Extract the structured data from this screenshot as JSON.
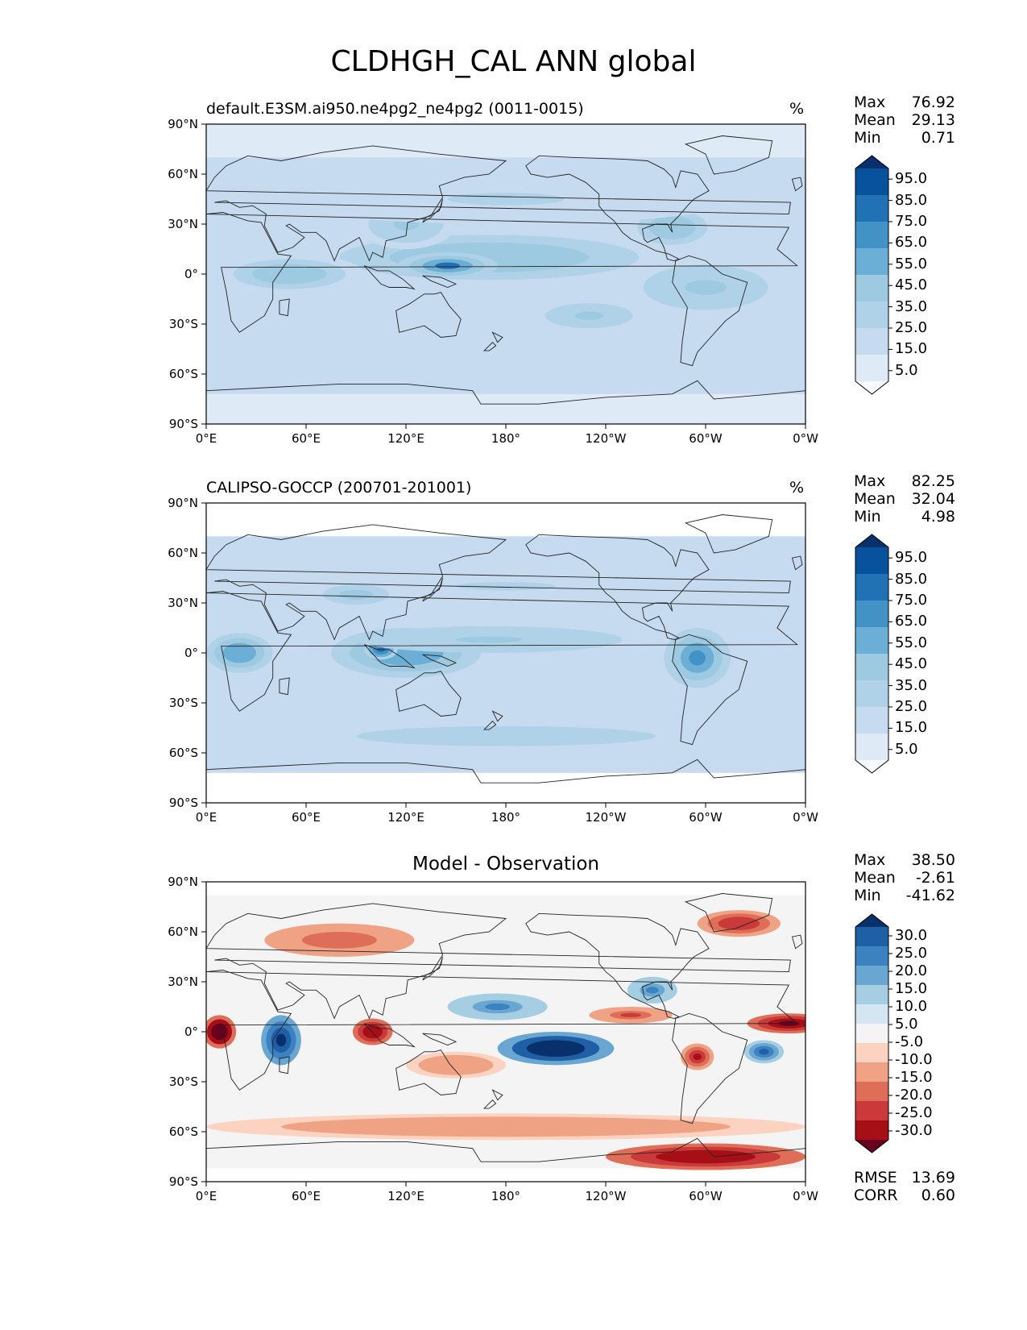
{
  "figure": {
    "title": "CLDHGH_CAL ANN global"
  },
  "colormaps": {
    "blues": [
      "#f7fbff",
      "#deebf7",
      "#c6dbef",
      "#b0d2e8",
      "#9ecae1",
      "#6baed6",
      "#4292c6",
      "#2171b5",
      "#08519c",
      "#08306b"
    ],
    "diff": [
      "#67001f",
      "#a50f15",
      "#cb3a3a",
      "#de6e57",
      "#f0a285",
      "#fbd3c0",
      "#f4f4f4",
      "#d4e6f1",
      "#a6cee3",
      "#6aa6d2",
      "#3d82c0",
      "#1f5fa6",
      "#08306b"
    ]
  },
  "chart_data": [
    {
      "type": "heatmap",
      "title": "default.E3SM.ai950.ne4pg2_ne4pg2 (0011-0015)",
      "units": "%",
      "stats": [
        {
          "label": "Max",
          "value": "76.92"
        },
        {
          "label": "Mean",
          "value": "29.13"
        },
        {
          "label": "Min",
          "value": "0.71"
        }
      ],
      "colorbar_levels": [
        "95.0",
        "85.0",
        "75.0",
        "65.0",
        "55.0",
        "45.0",
        "35.0",
        "25.0",
        "15.0",
        "5.0"
      ],
      "colormap": "blues",
      "xticks": [
        "0°E",
        "60°E",
        "120°E",
        "180°",
        "120°W",
        "60°W",
        "0°W"
      ],
      "yticks": [
        "90°N",
        "60°N",
        "30°N",
        "0°",
        "30°S",
        "60°S",
        "90°S"
      ],
      "xlim": [
        0,
        360
      ],
      "ylim": [
        -90,
        90
      ],
      "field_regions": [
        {
          "lon": 170,
          "lat": 10,
          "rlon": 120,
          "rlat": 18,
          "value": 48
        },
        {
          "lon": 145,
          "lat": 5,
          "rlon": 30,
          "rlat": 8,
          "value": 72
        },
        {
          "lon": 50,
          "lat": 0,
          "rlon": 45,
          "rlat": 12,
          "value": 48
        },
        {
          "lon": 300,
          "lat": -8,
          "rlon": 50,
          "rlat": 18,
          "value": 45
        },
        {
          "lon": 230,
          "lat": -25,
          "rlon": 35,
          "rlat": 10,
          "value": 40
        },
        {
          "lon": 280,
          "lat": 28,
          "rlon": 28,
          "rlat": 14,
          "value": 48
        },
        {
          "lon": 120,
          "lat": 30,
          "rlon": 30,
          "rlat": 15,
          "value": 40
        },
        {
          "lon": 180,
          "lat": 45,
          "rlon": 140,
          "rlat": 15,
          "value": 30
        },
        {
          "lon": 180,
          "lat": -45,
          "rlon": 180,
          "rlat": 12,
          "value": 25
        }
      ]
    },
    {
      "type": "heatmap",
      "title": "CALIPSO-GOCCP (200701-201001)",
      "units": "%",
      "stats": [
        {
          "label": "Max",
          "value": "82.25"
        },
        {
          "label": "Mean",
          "value": "32.04"
        },
        {
          "label": "Min",
          "value": "4.98"
        }
      ],
      "colorbar_levels": [
        "95.0",
        "85.0",
        "75.0",
        "65.0",
        "55.0",
        "45.0",
        "35.0",
        "25.0",
        "15.0",
        "5.0"
      ],
      "colormap": "blues",
      "xticks": [
        "0°E",
        "60°E",
        "120°E",
        "180°",
        "120°W",
        "60°W",
        "0°W"
      ],
      "yticks": [
        "90°N",
        "60°N",
        "30°N",
        "0°",
        "30°S",
        "60°S",
        "90°S"
      ],
      "xlim": [
        0,
        360
      ],
      "ylim": [
        -90,
        90
      ],
      "field_regions": [
        {
          "lon": 120,
          "lat": 0,
          "rlon": 45,
          "rlat": 15,
          "value": 58
        },
        {
          "lon": 105,
          "lat": 2,
          "rlon": 10,
          "rlat": 6,
          "value": 75
        },
        {
          "lon": 20,
          "lat": 0,
          "rlon": 20,
          "rlat": 12,
          "value": 58
        },
        {
          "lon": 295,
          "lat": -3,
          "rlon": 20,
          "rlat": 18,
          "value": 60
        },
        {
          "lon": 170,
          "lat": 8,
          "rlon": 80,
          "rlat": 8,
          "value": 42
        },
        {
          "lon": 180,
          "lat": 40,
          "rlon": 120,
          "rlat": 10,
          "value": 30
        },
        {
          "lon": 90,
          "lat": 35,
          "rlon": 20,
          "rlat": 6,
          "value": 45
        },
        {
          "lon": 180,
          "lat": -50,
          "rlon": 180,
          "rlat": 12,
          "value": 32
        }
      ]
    },
    {
      "type": "heatmap",
      "title": "Model - Observation",
      "units": "",
      "stats": [
        {
          "label": "Max",
          "value": "38.50"
        },
        {
          "label": "Mean",
          "value": "-2.61"
        },
        {
          "label": "Min",
          "value": "-41.62"
        }
      ],
      "extra_stats": [
        {
          "label": "RMSE",
          "value": "13.69"
        },
        {
          "label": "CORR",
          "value": "0.60"
        }
      ],
      "colorbar_levels": [
        "30.0",
        "25.0",
        "20.0",
        "15.0",
        "10.0",
        "5.0",
        "-5.0",
        "-10.0",
        "-15.0",
        "-20.0",
        "-25.0",
        "-30.0"
      ],
      "colormap": "diff",
      "xticks": [
        "0°E",
        "60°E",
        "120°E",
        "180°",
        "120°W",
        "60°W",
        "0°W"
      ],
      "yticks": [
        "90°N",
        "60°N",
        "30°N",
        "0°",
        "30°S",
        "60°S",
        "90°S"
      ],
      "xlim": [
        0,
        360
      ],
      "ylim": [
        -90,
        90
      ],
      "field_regions": [
        {
          "lon": 210,
          "lat": -10,
          "rlon": 35,
          "rlat": 10,
          "value": 38
        },
        {
          "lon": 175,
          "lat": 15,
          "rlon": 30,
          "rlat": 8,
          "value": 22
        },
        {
          "lon": 45,
          "lat": -5,
          "rlon": 12,
          "rlat": 15,
          "value": 35
        },
        {
          "lon": 268,
          "lat": 25,
          "rlon": 15,
          "rlat": 8,
          "value": 20
        },
        {
          "lon": 335,
          "lat": -12,
          "rlon": 12,
          "rlat": 7,
          "value": 28
        },
        {
          "lon": 8,
          "lat": 0,
          "rlon": 10,
          "rlat": 10,
          "value": -38
        },
        {
          "lon": 100,
          "lat": 0,
          "rlon": 12,
          "rlat": 8,
          "value": -30
        },
        {
          "lon": 350,
          "lat": 5,
          "rlon": 25,
          "rlat": 6,
          "value": -32
        },
        {
          "lon": 295,
          "lat": -15,
          "rlon": 10,
          "rlat": 8,
          "value": -28
        },
        {
          "lon": 255,
          "lat": 10,
          "rlon": 25,
          "rlat": 5,
          "value": -22
        },
        {
          "lon": 300,
          "lat": -75,
          "rlon": 60,
          "rlat": 8,
          "value": -30
        },
        {
          "lon": 80,
          "lat": 55,
          "rlon": 45,
          "rlat": 10,
          "value": -20
        },
        {
          "lon": 320,
          "lat": 65,
          "rlon": 25,
          "rlat": 8,
          "value": -25
        },
        {
          "lon": 180,
          "lat": -57,
          "rlon": 180,
          "rlat": 8,
          "value": -15
        },
        {
          "lon": 150,
          "lat": -20,
          "rlon": 30,
          "rlat": 8,
          "value": -15
        }
      ]
    }
  ]
}
